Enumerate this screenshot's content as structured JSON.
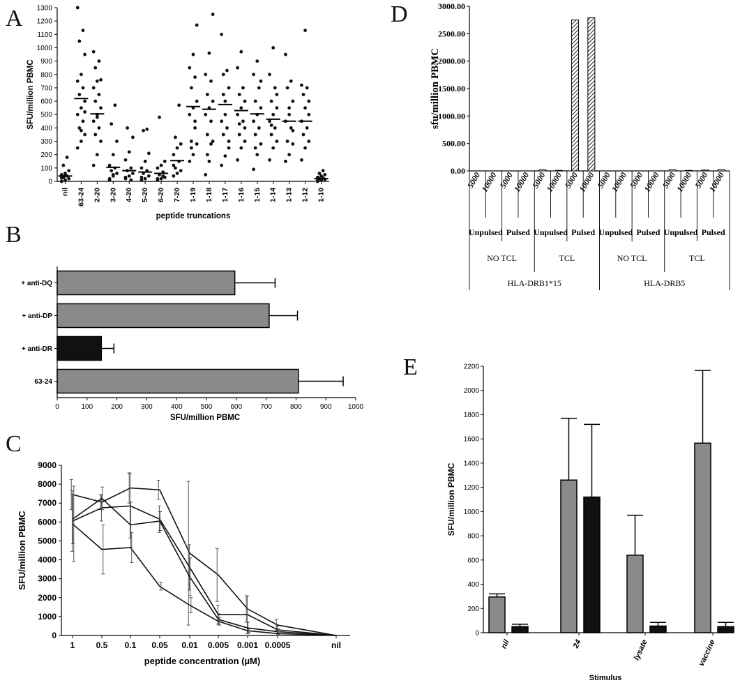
{
  "panels": {
    "A": "A",
    "B": "B",
    "C": "C",
    "D": "D",
    "E": "E"
  },
  "chart_data": [
    {
      "id": "A",
      "type": "scatter",
      "ylabel": "SFU/million PBMC",
      "xlabel": "peptide truncations",
      "ylim": [
        0,
        1300
      ],
      "yticks": [
        0,
        100,
        200,
        300,
        400,
        500,
        600,
        700,
        800,
        900,
        1000,
        1100,
        1200,
        1300
      ],
      "categories": [
        "nil",
        "63-24",
        "2-20",
        "3-20",
        "4-20",
        "5-20",
        "6-20",
        "7-20",
        "1-19",
        "1-18",
        "1-17",
        "1-16",
        "1-15",
        "1-14",
        "1-13",
        "1-12",
        "1-10"
      ],
      "means": [
        40,
        620,
        505,
        105,
        80,
        70,
        60,
        155,
        560,
        540,
        575,
        530,
        505,
        465,
        450,
        450,
        20
      ],
      "points": [
        [
          0,
          10,
          20,
          30,
          40,
          50,
          60,
          80,
          120,
          180,
          25,
          45
        ],
        [
          250,
          300,
          350,
          400,
          450,
          500,
          550,
          600,
          650,
          700,
          750,
          800,
          950,
          1050,
          1130,
          1300,
          380,
          520
        ],
        [
          120,
          200,
          300,
          350,
          400,
          450,
          500,
          550,
          600,
          650,
          700,
          750,
          760,
          850,
          900,
          970,
          480
        ],
        [
          20,
          40,
          60,
          80,
          100,
          120,
          200,
          300,
          430,
          570,
          10,
          50
        ],
        [
          20,
          40,
          60,
          80,
          100,
          160,
          220,
          330,
          400,
          10,
          30
        ],
        [
          10,
          20,
          40,
          60,
          80,
          100,
          150,
          210,
          380,
          390,
          30
        ],
        [
          10,
          20,
          30,
          50,
          70,
          100,
          120,
          150,
          480,
          40,
          20
        ],
        [
          40,
          60,
          80,
          100,
          150,
          200,
          250,
          280,
          330,
          570,
          120
        ],
        [
          150,
          200,
          280,
          300,
          450,
          500,
          550,
          600,
          700,
          780,
          850,
          950,
          1170,
          250,
          400
        ],
        [
          50,
          150,
          300,
          350,
          450,
          500,
          550,
          600,
          650,
          750,
          800,
          960,
          1250,
          200,
          280
        ],
        [
          120,
          190,
          300,
          350,
          400,
          450,
          600,
          700,
          800,
          830,
          1100,
          500,
          250,
          650
        ],
        [
          160,
          250,
          300,
          350,
          450,
          500,
          550,
          600,
          650,
          700,
          850,
          970,
          400,
          430
        ],
        [
          90,
          200,
          280,
          350,
          400,
          450,
          500,
          550,
          600,
          700,
          800,
          900,
          750,
          250
        ],
        [
          160,
          250,
          300,
          350,
          400,
          450,
          500,
          550,
          600,
          700,
          800,
          1000,
          650,
          420
        ],
        [
          150,
          200,
          280,
          300,
          400,
          450,
          550,
          600,
          700,
          750,
          950,
          500,
          380
        ],
        [
          160,
          250,
          300,
          350,
          400,
          450,
          550,
          600,
          650,
          700,
          720,
          1130,
          500
        ],
        [
          5,
          10,
          15,
          20,
          25,
          30,
          40,
          50,
          60,
          80,
          0,
          10
        ]
      ]
    },
    {
      "id": "B",
      "type": "bar",
      "orientation": "horizontal",
      "xlabel": "SFU/million PBMC",
      "xlim": [
        0,
        1000
      ],
      "xticks": [
        0,
        100,
        200,
        300,
        400,
        500,
        600,
        700,
        800,
        900,
        1000
      ],
      "categories": [
        "+ anti-DQ",
        "+ anti-DP",
        "+ anti-DR",
        "63-24"
      ],
      "values": [
        595,
        710,
        148,
        808
      ],
      "errors": [
        135,
        95,
        42,
        150
      ],
      "colors": [
        "#8a8a8a",
        "#8a8a8a",
        "#111111",
        "#8a8a8a"
      ]
    },
    {
      "id": "C",
      "type": "line",
      "ylabel": "SFU/million PBMC",
      "xlabel": "peptide concentration (µM)",
      "ylim": [
        0,
        9000
      ],
      "yticks": [
        0,
        1000,
        2000,
        3000,
        4000,
        5000,
        6000,
        7000,
        8000,
        9000
      ],
      "categories": [
        "1",
        "0.5",
        "0.1",
        "0.05",
        "0.01",
        "0.005",
        "0.001",
        "0.0005",
        "nil"
      ],
      "series": [
        {
          "values": [
            7450,
            7050,
            7800,
            7700,
            4350,
            3200,
            1400,
            550,
            0
          ],
          "errors": [
            800,
            400,
            800,
            500,
            3800,
            1400,
            700,
            300,
            0
          ]
        },
        {
          "values": [
            6050,
            6750,
            6850,
            6150,
            3600,
            1100,
            1100,
            300,
            0
          ],
          "errors": [
            1600,
            700,
            1700,
            700,
            1200,
            500,
            1000,
            200,
            0
          ]
        },
        {
          "values": [
            6150,
            7250,
            5850,
            6050,
            3100,
            850,
            400,
            200,
            0
          ],
          "errors": [
            1300,
            600,
            1200,
            500,
            1000,
            300,
            300,
            150,
            0
          ]
        },
        {
          "values": [
            5900,
            4550,
            4650,
            2600,
            1600,
            750,
            250,
            100,
            0
          ],
          "errors": [
            2000,
            1300,
            800,
            200,
            400,
            200,
            100,
            100,
            0
          ]
        }
      ]
    },
    {
      "id": "D",
      "type": "bar",
      "ylabel": "sfu/million PBMC",
      "ylim": [
        0,
        3000
      ],
      "yticks": [
        "0.00",
        "500.00",
        "1000.00",
        "1500.00",
        "2000.00",
        "2500.00",
        "3000.00"
      ],
      "categories": [
        "5000",
        "10000",
        "5000",
        "10000",
        "5000",
        "10000",
        "5000",
        "10000",
        "5000",
        "10000",
        "5000",
        "10000",
        "5000",
        "10000",
        "5000",
        "10000"
      ],
      "values": [
        0,
        0,
        0,
        0,
        20,
        10,
        2750,
        2790,
        0,
        0,
        0,
        0,
        20,
        10,
        15,
        20
      ],
      "group_level1": [
        "Unpulsed",
        "Pulsed",
        "Unpulsed",
        "Pulsed",
        "Unpulsed",
        "Pulsed",
        "Unpulsed",
        "Pulsed"
      ],
      "group_level2": [
        "NO TCL",
        "TCL",
        "NO TCL",
        "TCL"
      ],
      "group_level3": [
        "HLA-DRB1*15",
        "HLA-DRB5"
      ]
    },
    {
      "id": "E",
      "type": "bar",
      "ylabel": "SFU/million PBMC",
      "xlabel": "Stimulus",
      "ylim": [
        0,
        2200
      ],
      "yticks": [
        0,
        200,
        400,
        600,
        800,
        1000,
        1200,
        1400,
        1600,
        1800,
        2000,
        2200
      ],
      "categories": [
        "nil",
        "24",
        "lysate",
        "vaccine"
      ],
      "series": [
        {
          "color": "#8a8a8a",
          "values": [
            295,
            1260,
            640,
            1565
          ],
          "errors": [
            25,
            510,
            330,
            600
          ]
        },
        {
          "color": "#111111",
          "values": [
            50,
            1120,
            55,
            50
          ],
          "errors": [
            20,
            600,
            30,
            35
          ]
        }
      ]
    }
  ]
}
